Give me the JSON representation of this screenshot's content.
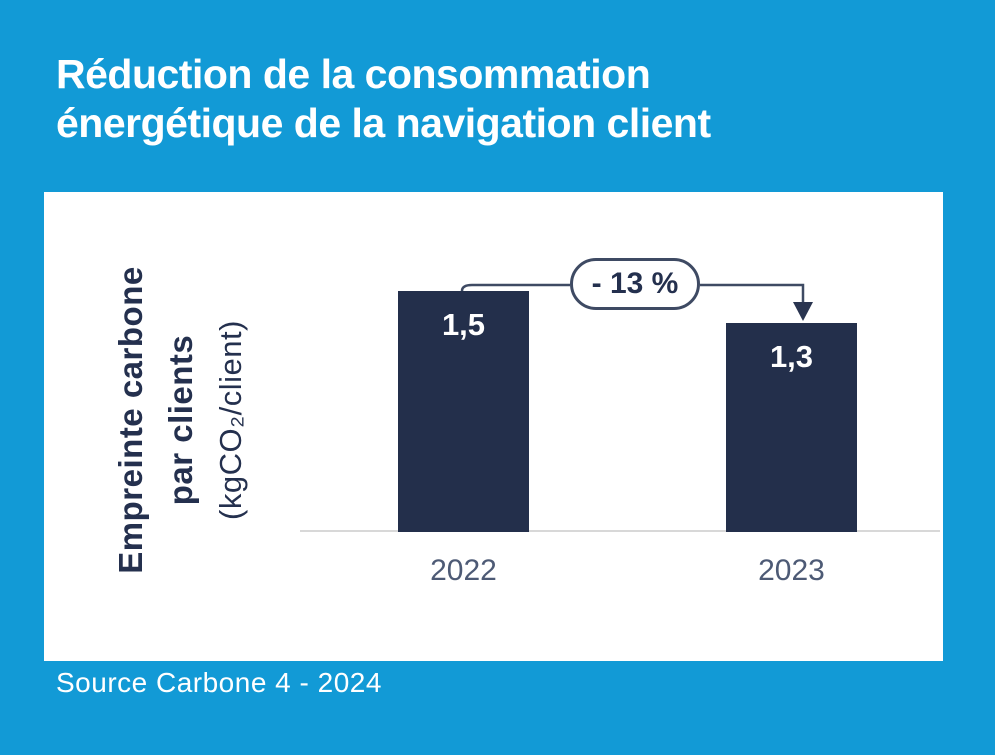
{
  "page": {
    "title_lines": [
      "Réduction de la consommation",
      "énergétique de la navigation client"
    ],
    "source": "Source Carbone 4 - 2024"
  },
  "chart_data": {
    "type": "bar",
    "title": "Réduction de la consommation énergétique de la navigation client",
    "categories": [
      "2022",
      "2023"
    ],
    "values": [
      1.5,
      1.3
    ],
    "value_labels": [
      "1,5",
      "1,3"
    ],
    "xlabel": "",
    "ylabel": "Empreinte carbone par clients (kgCO₂/client)",
    "ylabel_lines": [
      "Empreinte carbone",
      "par clients",
      "(kgCO₂/client)"
    ],
    "ylim": [
      0,
      1.6
    ],
    "grid": false,
    "legend": false,
    "annotations": [
      "- 13 %"
    ],
    "source": "Source Carbone 4 - 2024"
  },
  "colors": {
    "background_blue": "#129ad6",
    "bar_navy": "#232f4b",
    "annotation_line": "#3e4a63",
    "text_ink": "#24304e",
    "axis_gray": "#d8d8d8",
    "tick_gray": "#4d5a75",
    "title_white": "#ffffff"
  }
}
